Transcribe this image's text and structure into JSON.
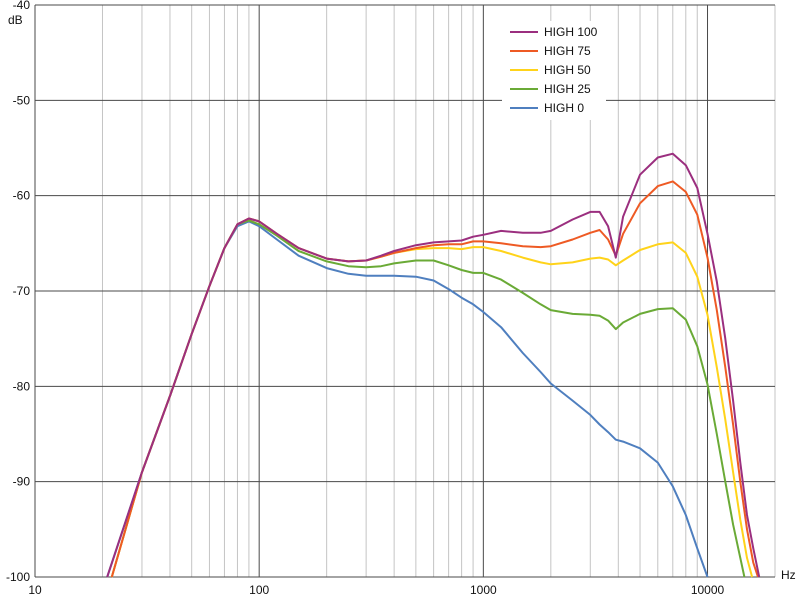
{
  "chart_data": {
    "type": "line",
    "xscale": "log",
    "xlim": [
      10,
      20000
    ],
    "ylim": [
      -100,
      -40
    ],
    "xlabel": "Hz",
    "ylabel": "dB",
    "x_ticks": [
      {
        "value": 10,
        "label": "10"
      },
      {
        "value": 100,
        "label": "100"
      },
      {
        "value": 1000,
        "label": "1000"
      },
      {
        "value": 10000,
        "label": "10000"
      }
    ],
    "y_ticks": [
      {
        "value": -40,
        "label": "-40"
      },
      {
        "value": -50,
        "label": "-50"
      },
      {
        "value": -60,
        "label": "-60"
      },
      {
        "value": -70,
        "label": "-70"
      },
      {
        "value": -80,
        "label": "-80"
      },
      {
        "value": -90,
        "label": "-90"
      },
      {
        "value": -100,
        "label": "-100"
      }
    ],
    "grid": true,
    "legend_position": "top-right",
    "series": [
      {
        "name": "HIGH 100",
        "color": "#9b2f7f",
        "points": [
          [
            21,
            -100
          ],
          [
            30,
            -89
          ],
          [
            40,
            -81
          ],
          [
            50,
            -74.5
          ],
          [
            60,
            -69.5
          ],
          [
            70,
            -65.5
          ],
          [
            80,
            -63
          ],
          [
            90,
            -62.4
          ],
          [
            100,
            -62.7
          ],
          [
            120,
            -64
          ],
          [
            150,
            -65.5
          ],
          [
            200,
            -66.6
          ],
          [
            250,
            -66.9
          ],
          [
            300,
            -66.8
          ],
          [
            350,
            -66.3
          ],
          [
            400,
            -65.8
          ],
          [
            500,
            -65.2
          ],
          [
            600,
            -64.9
          ],
          [
            700,
            -64.8
          ],
          [
            800,
            -64.7
          ],
          [
            900,
            -64.3
          ],
          [
            1000,
            -64.1
          ],
          [
            1200,
            -63.7
          ],
          [
            1500,
            -63.9
          ],
          [
            1800,
            -63.9
          ],
          [
            2000,
            -63.7
          ],
          [
            2500,
            -62.5
          ],
          [
            3000,
            -61.7
          ],
          [
            3300,
            -61.7
          ],
          [
            3600,
            -63.2
          ],
          [
            3900,
            -66.5
          ],
          [
            4200,
            -62.2
          ],
          [
            5000,
            -57.8
          ],
          [
            6000,
            -56
          ],
          [
            7000,
            -55.6
          ],
          [
            8000,
            -56.8
          ],
          [
            9000,
            -59.2
          ],
          [
            10000,
            -64
          ],
          [
            11000,
            -69
          ],
          [
            12000,
            -75
          ],
          [
            13000,
            -81.5
          ],
          [
            14000,
            -88
          ],
          [
            15000,
            -93.5
          ],
          [
            16000,
            -97
          ],
          [
            17000,
            -100
          ]
        ]
      },
      {
        "name": "HIGH 75",
        "color": "#ee5a24",
        "points": [
          [
            22,
            -100
          ],
          [
            30,
            -89
          ],
          [
            40,
            -81
          ],
          [
            50,
            -74.5
          ],
          [
            60,
            -69.5
          ],
          [
            70,
            -65.5
          ],
          [
            80,
            -63
          ],
          [
            90,
            -62.4
          ],
          [
            100,
            -62.7
          ],
          [
            120,
            -64
          ],
          [
            150,
            -65.5
          ],
          [
            200,
            -66.6
          ],
          [
            250,
            -66.9
          ],
          [
            300,
            -66.8
          ],
          [
            350,
            -66.4
          ],
          [
            400,
            -66
          ],
          [
            500,
            -65.5
          ],
          [
            600,
            -65.2
          ],
          [
            700,
            -65.1
          ],
          [
            800,
            -65.1
          ],
          [
            900,
            -64.8
          ],
          [
            1000,
            -64.8
          ],
          [
            1200,
            -65
          ],
          [
            1500,
            -65.3
          ],
          [
            1800,
            -65.4
          ],
          [
            2000,
            -65.3
          ],
          [
            2500,
            -64.6
          ],
          [
            3000,
            -63.9
          ],
          [
            3300,
            -63.6
          ],
          [
            3600,
            -64.6
          ],
          [
            3900,
            -66.3
          ],
          [
            4200,
            -64
          ],
          [
            5000,
            -60.8
          ],
          [
            6000,
            -59
          ],
          [
            7000,
            -58.5
          ],
          [
            8000,
            -59.6
          ],
          [
            9000,
            -62
          ],
          [
            10000,
            -66.5
          ],
          [
            11000,
            -72
          ],
          [
            12000,
            -78
          ],
          [
            13000,
            -84
          ],
          [
            14000,
            -90
          ],
          [
            15000,
            -95
          ],
          [
            16000,
            -98.5
          ],
          [
            16800,
            -100
          ]
        ]
      },
      {
        "name": "HIGH 50",
        "color": "#ffd31a",
        "points": [
          [
            22,
            -100
          ],
          [
            30,
            -89
          ],
          [
            40,
            -81
          ],
          [
            50,
            -74.5
          ],
          [
            60,
            -69.5
          ],
          [
            70,
            -65.5
          ],
          [
            80,
            -63
          ],
          [
            90,
            -62.4
          ],
          [
            100,
            -62.7
          ],
          [
            120,
            -64
          ],
          [
            150,
            -65.5
          ],
          [
            200,
            -66.6
          ],
          [
            250,
            -66.9
          ],
          [
            300,
            -66.8
          ],
          [
            350,
            -66.4
          ],
          [
            400,
            -66
          ],
          [
            500,
            -65.6
          ],
          [
            600,
            -65.5
          ],
          [
            700,
            -65.5
          ],
          [
            800,
            -65.6
          ],
          [
            900,
            -65.4
          ],
          [
            1000,
            -65.4
          ],
          [
            1200,
            -65.8
          ],
          [
            1500,
            -66.5
          ],
          [
            1800,
            -67
          ],
          [
            2000,
            -67.2
          ],
          [
            2500,
            -67
          ],
          [
            3000,
            -66.6
          ],
          [
            3300,
            -66.5
          ],
          [
            3600,
            -66.7
          ],
          [
            3900,
            -67.3
          ],
          [
            4200,
            -66.8
          ],
          [
            5000,
            -65.7
          ],
          [
            6000,
            -65.1
          ],
          [
            7000,
            -64.9
          ],
          [
            8000,
            -66
          ],
          [
            9000,
            -68.5
          ],
          [
            10000,
            -72.5
          ],
          [
            11000,
            -78
          ],
          [
            12000,
            -83.5
          ],
          [
            13000,
            -89
          ],
          [
            14000,
            -94
          ],
          [
            15000,
            -98
          ],
          [
            15800,
            -100
          ]
        ]
      },
      {
        "name": "HIGH 25",
        "color": "#6aaa36",
        "points": [
          [
            22,
            -100
          ],
          [
            30,
            -89
          ],
          [
            40,
            -81
          ],
          [
            50,
            -74.5
          ],
          [
            60,
            -69.5
          ],
          [
            70,
            -65.5
          ],
          [
            80,
            -63
          ],
          [
            90,
            -62.6
          ],
          [
            100,
            -63
          ],
          [
            120,
            -64.2
          ],
          [
            150,
            -65.8
          ],
          [
            200,
            -66.9
          ],
          [
            250,
            -67.4
          ],
          [
            300,
            -67.5
          ],
          [
            350,
            -67.4
          ],
          [
            400,
            -67.1
          ],
          [
            500,
            -66.8
          ],
          [
            600,
            -66.8
          ],
          [
            700,
            -67.3
          ],
          [
            800,
            -67.8
          ],
          [
            900,
            -68.1
          ],
          [
            1000,
            -68.1
          ],
          [
            1200,
            -68.8
          ],
          [
            1500,
            -70.2
          ],
          [
            1800,
            -71.4
          ],
          [
            2000,
            -72
          ],
          [
            2500,
            -72.4
          ],
          [
            3000,
            -72.5
          ],
          [
            3300,
            -72.6
          ],
          [
            3600,
            -73.1
          ],
          [
            3900,
            -74
          ],
          [
            4200,
            -73.3
          ],
          [
            5000,
            -72.4
          ],
          [
            6000,
            -71.9
          ],
          [
            7000,
            -71.8
          ],
          [
            8000,
            -73
          ],
          [
            9000,
            -75.8
          ],
          [
            10000,
            -79.8
          ],
          [
            11000,
            -85
          ],
          [
            12000,
            -90
          ],
          [
            13000,
            -94.5
          ],
          [
            14000,
            -98
          ],
          [
            14600,
            -100
          ]
        ]
      },
      {
        "name": "HIGH 0",
        "color": "#4f7fbf",
        "points": [
          [
            21,
            -100
          ],
          [
            30,
            -89
          ],
          [
            40,
            -81
          ],
          [
            50,
            -74.5
          ],
          [
            60,
            -69.5
          ],
          [
            70,
            -65.5
          ],
          [
            80,
            -63.2
          ],
          [
            90,
            -62.7
          ],
          [
            100,
            -63.2
          ],
          [
            120,
            -64.6
          ],
          [
            150,
            -66.3
          ],
          [
            200,
            -67.6
          ],
          [
            250,
            -68.2
          ],
          [
            300,
            -68.4
          ],
          [
            350,
            -68.4
          ],
          [
            400,
            -68.4
          ],
          [
            500,
            -68.5
          ],
          [
            600,
            -68.9
          ],
          [
            700,
            -69.8
          ],
          [
            800,
            -70.7
          ],
          [
            900,
            -71.4
          ],
          [
            1000,
            -72.2
          ],
          [
            1200,
            -73.8
          ],
          [
            1500,
            -76.5
          ],
          [
            1800,
            -78.5
          ],
          [
            2000,
            -79.7
          ],
          [
            2500,
            -81.5
          ],
          [
            3000,
            -83
          ],
          [
            3300,
            -84
          ],
          [
            3600,
            -84.8
          ],
          [
            3900,
            -85.6
          ],
          [
            4200,
            -85.8
          ],
          [
            5000,
            -86.5
          ],
          [
            6000,
            -88
          ],
          [
            7000,
            -90.5
          ],
          [
            8000,
            -93.5
          ],
          [
            9000,
            -97
          ],
          [
            10000,
            -100
          ]
        ]
      }
    ]
  }
}
